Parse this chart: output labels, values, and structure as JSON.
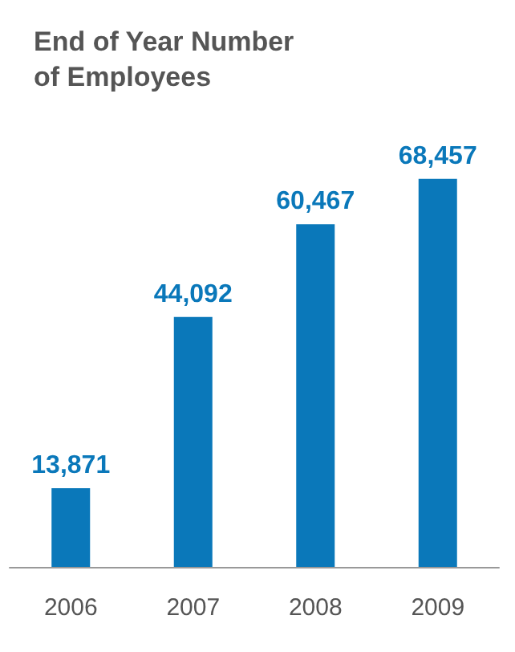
{
  "chart_data": {
    "type": "bar",
    "title": "End of Year Number of Employees",
    "categories": [
      "2006",
      "2007",
      "2008",
      "2009"
    ],
    "values": [
      13871,
      44092,
      60467,
      68457
    ],
    "value_labels": [
      "13,871",
      "44,092",
      "60,467",
      "68,457"
    ],
    "color": "#0a78ba"
  }
}
